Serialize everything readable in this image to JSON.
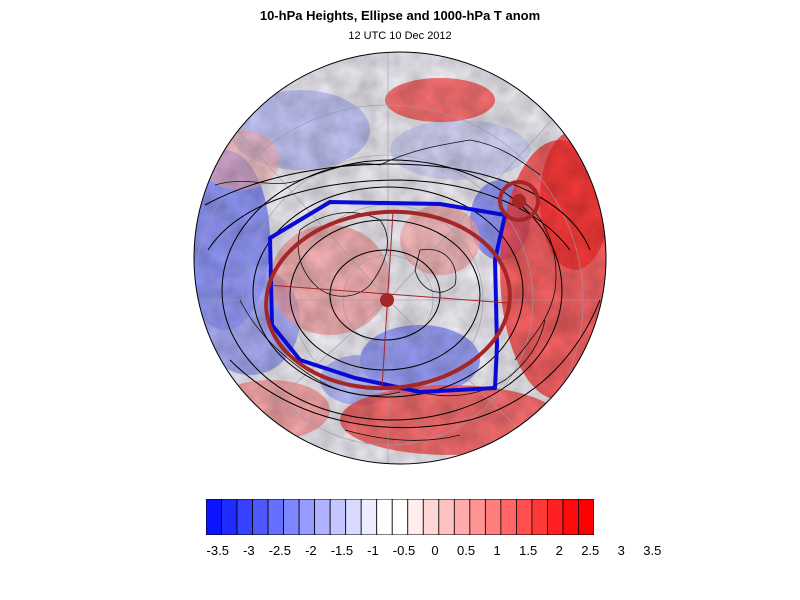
{
  "title": "10-hPa Heights, Ellipse and 1000-hPa T anom",
  "subtitle": "12 UTC 10 Dec 2012",
  "colorbar": {
    "labels": [
      "-3.5",
      "-3",
      "-2.5",
      "-2",
      "-1.5",
      "-1",
      "-0.5",
      "0",
      "0.5",
      "1",
      "1.5",
      "2",
      "2.5",
      "3",
      "3.5"
    ],
    "colors": [
      "#0a14ff",
      "#1f2bff",
      "#3642ff",
      "#4e58ff",
      "#6670ff",
      "#7e86ff",
      "#969cff",
      "#aeb2ff",
      "#c4c7ff",
      "#d8daff",
      "#ebecff",
      "#ffffff",
      "#ffffff",
      "#ffecec",
      "#ffd6d6",
      "#ffc1c1",
      "#ffabab",
      "#ff9494",
      "#ff7d7d",
      "#ff6666",
      "#ff4f4f",
      "#ff3838",
      "#ff2121",
      "#ff0b0b",
      "#ff0000"
    ]
  },
  "map": {
    "projection": "north polar stereographic",
    "field": "1000-hPa temperature anomaly",
    "contours": "10-hPa geopotential heights",
    "vortex_ellipse_color": "#a52626",
    "vortex_edge_color": "#0a0ad6"
  }
}
